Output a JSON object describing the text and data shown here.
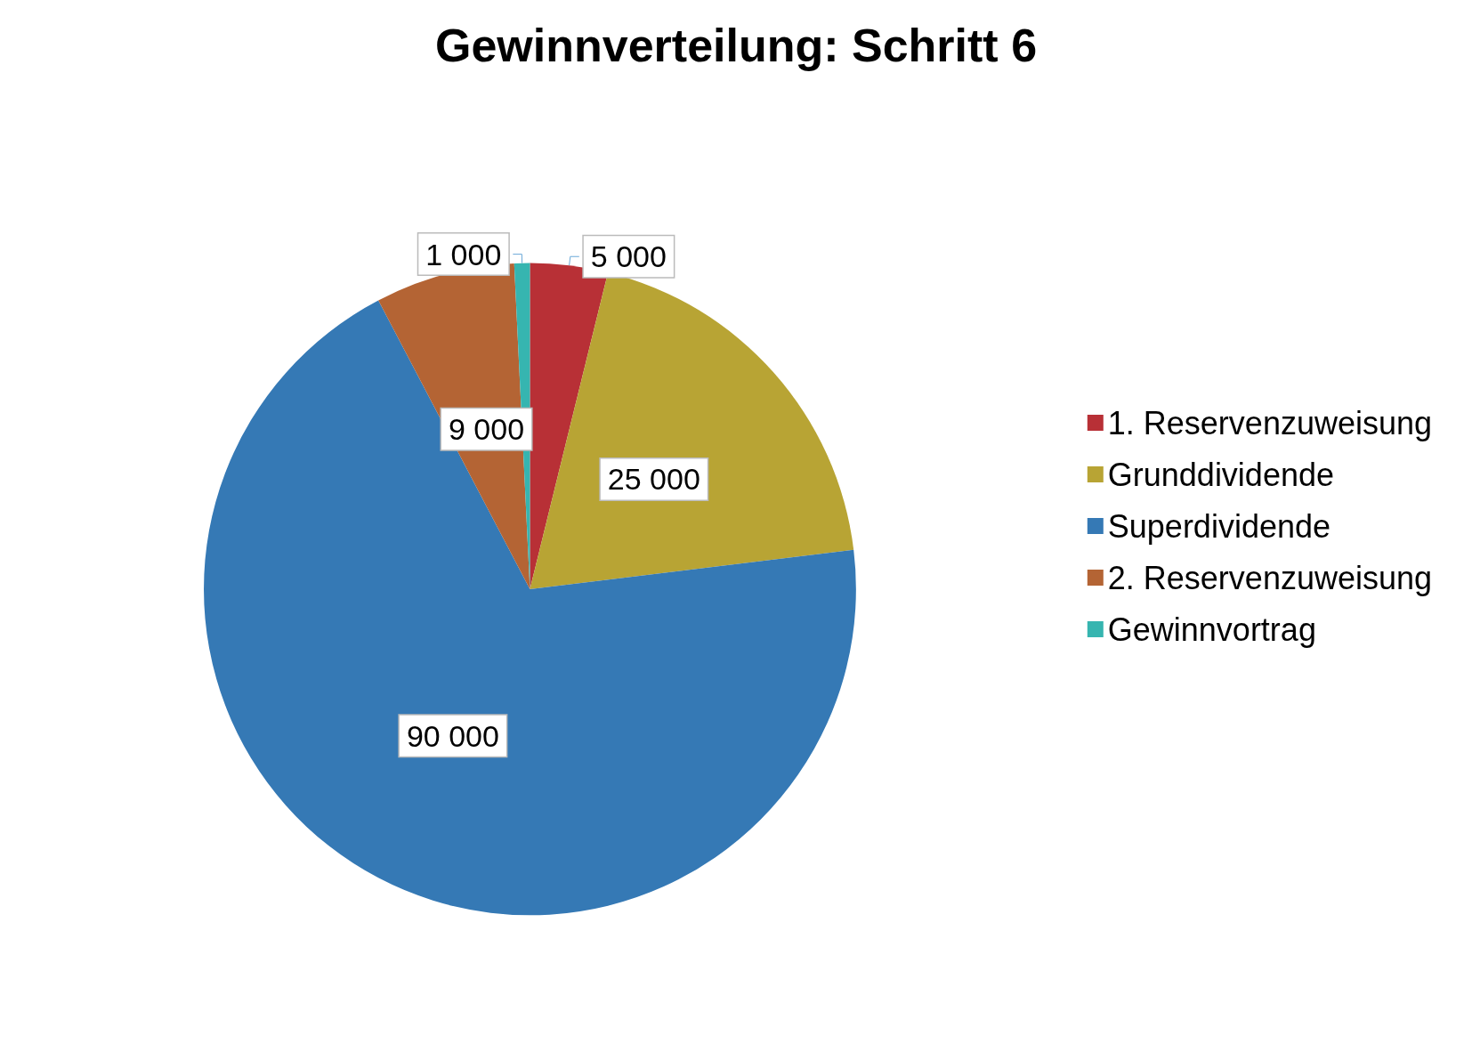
{
  "chart_data": {
    "type": "pie",
    "title": "Gewinnverteilung: Schritt 6",
    "categories": [
      "1. Reservenzuweisung",
      "Grunddividende",
      "Superdividende",
      "2. Reservenzuweisung",
      "Gewinnvortrag"
    ],
    "values": [
      5000,
      25000,
      90000,
      9000,
      1000
    ],
    "colors": [
      "#b83036",
      "#b8a434",
      "#3579b5",
      "#b46434",
      "#36b5b0"
    ],
    "value_labels": [
      "5 000",
      "25 000",
      "90 000",
      "9 000",
      "1 000"
    ],
    "legend": "right"
  }
}
